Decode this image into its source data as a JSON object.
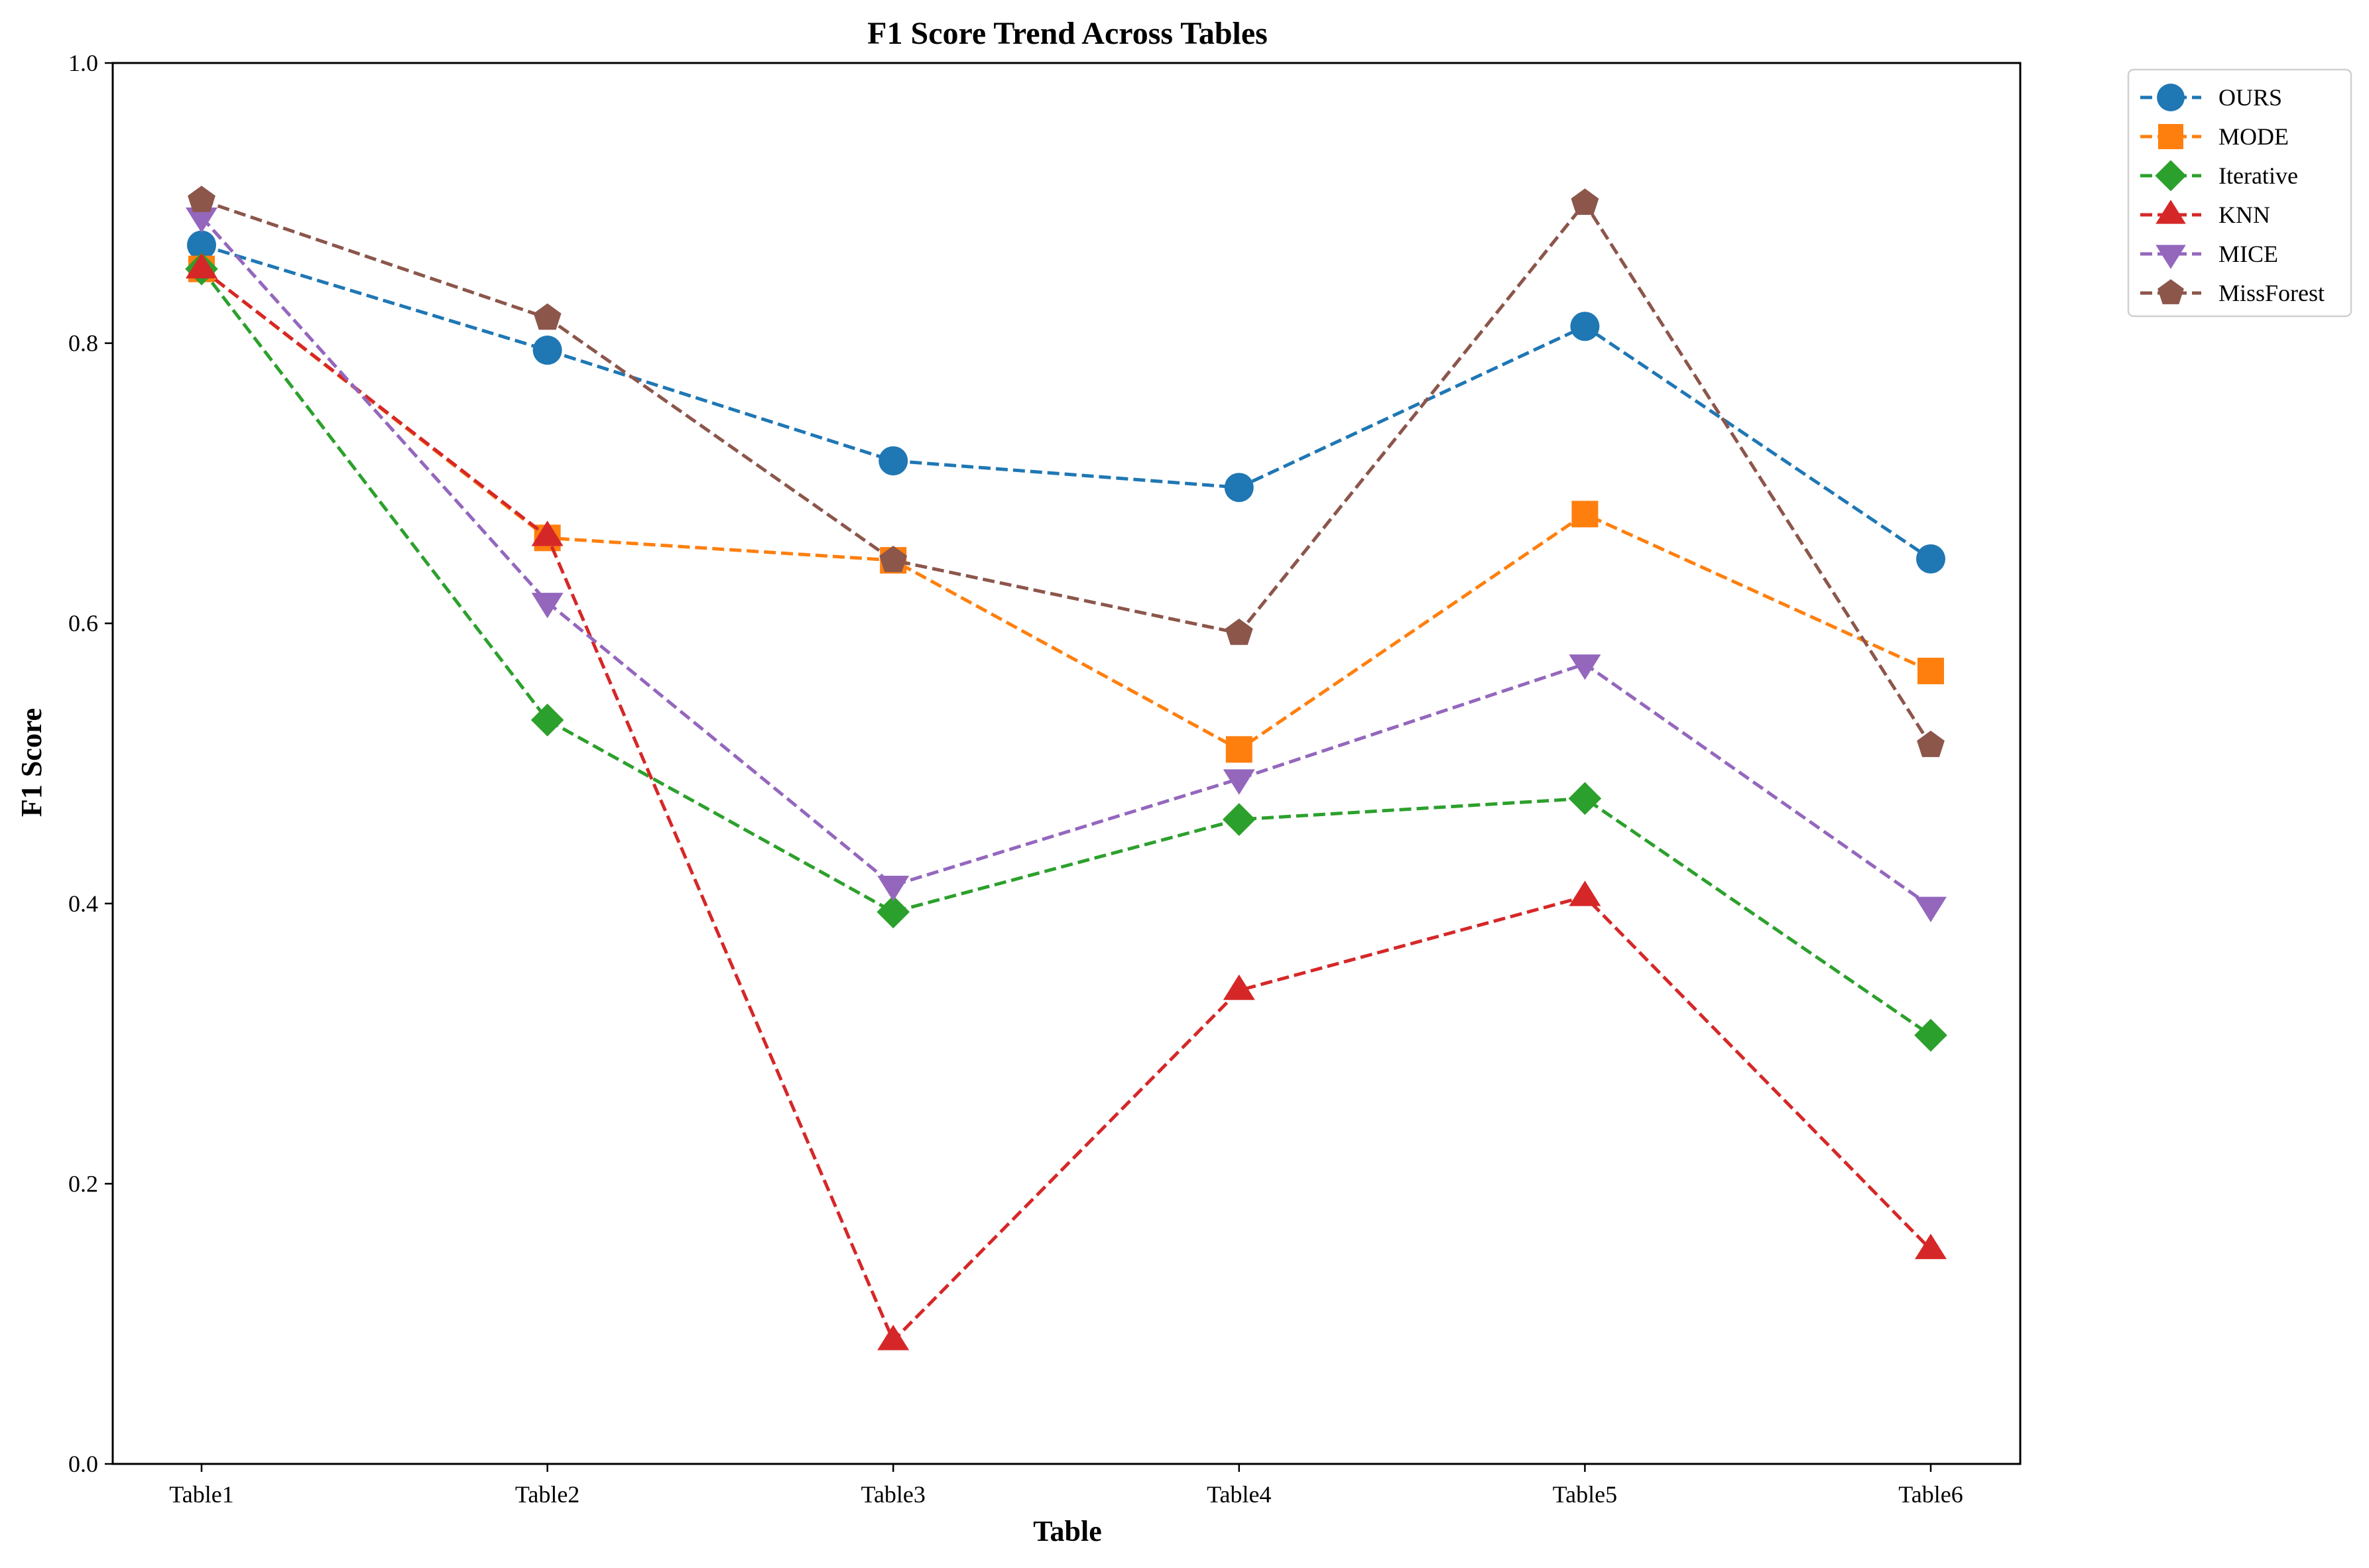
{
  "chart_data": {
    "type": "line",
    "title": "F1 Score Trend Across Tables",
    "xlabel": "Table",
    "ylabel": "F1 Score",
    "categories": [
      "Table1",
      "Table2",
      "Table3",
      "Table4",
      "Table5",
      "Table6"
    ],
    "ylim": [
      0.0,
      1.0
    ],
    "yticks": [
      "0.0",
      "0.2",
      "0.4",
      "0.6",
      "0.8",
      "1.0"
    ],
    "grid": false,
    "legend_position": "outside top-right",
    "line_style": "dashed",
    "series": [
      {
        "name": "OURS",
        "color": "#1f77b4",
        "marker": "circle",
        "values": [
          0.87,
          0.795,
          0.716,
          0.697,
          0.812,
          0.646
        ]
      },
      {
        "name": "MODE",
        "color": "#ff7f0e",
        "marker": "square",
        "values": [
          0.853,
          0.661,
          0.645,
          0.51,
          0.678,
          0.566
        ]
      },
      {
        "name": "Iterative",
        "color": "#2ca02c",
        "marker": "diamond",
        "values": [
          0.853,
          0.531,
          0.394,
          0.46,
          0.475,
          0.306
        ]
      },
      {
        "name": "KNN",
        "color": "#d62728",
        "marker": "triangle-up",
        "values": [
          0.853,
          0.662,
          0.088,
          0.338,
          0.405,
          0.153
        ]
      },
      {
        "name": "MICE",
        "color": "#9467bd",
        "marker": "triangle-down",
        "values": [
          0.89,
          0.615,
          0.413,
          0.489,
          0.571,
          0.398
        ]
      },
      {
        "name": "MissForest",
        "color": "#8c564b",
        "marker": "pentagon",
        "values": [
          0.902,
          0.818,
          0.645,
          0.593,
          0.9,
          0.513
        ]
      }
    ]
  }
}
